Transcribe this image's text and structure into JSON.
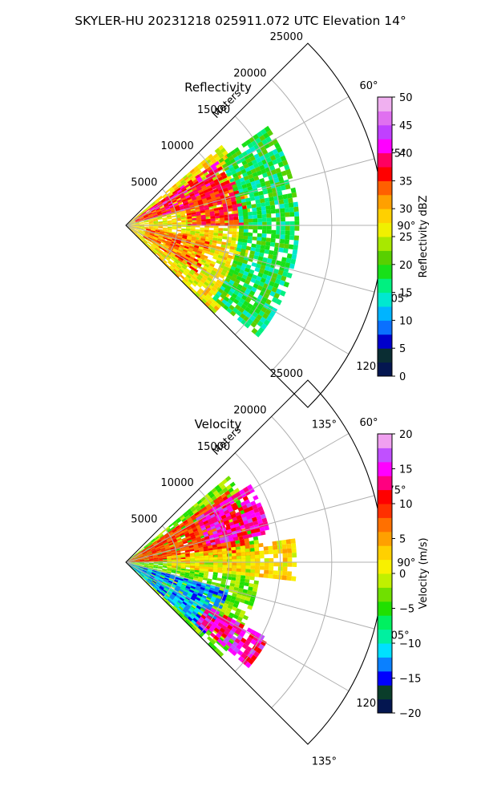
{
  "suptitle": "SKYLER-HU  20231218  025911.072 UTC Elevation 14°",
  "chart_data": [
    {
      "type": "heatmap",
      "title": "Reflectivity",
      "radial_label": "Meters",
      "r_ticks": [
        5000,
        10000,
        15000,
        20000,
        25000
      ],
      "r_tick_labels": [
        "5000",
        "10000",
        "15000",
        "20000",
        "25000"
      ],
      "theta_ticks": [
        60,
        75,
        90,
        105,
        120,
        135
      ],
      "theta_tick_labels": [
        "60°",
        "75°",
        "90°",
        "105°",
        "120°",
        "135°"
      ],
      "theta_range_deg": [
        45,
        135
      ],
      "r_range": [
        0,
        25000
      ],
      "grid": true,
      "colorbar": {
        "label": "Reflectivity dBZ",
        "range": [
          0,
          50
        ],
        "ticks": [
          0,
          5,
          10,
          15,
          20,
          25,
          30,
          35,
          40,
          45,
          50
        ],
        "tick_labels": [
          "0",
          "5",
          "10",
          "15",
          "20",
          "25",
          "30",
          "35",
          "40",
          "45",
          "50"
        ]
      },
      "echo_regions": [
        {
          "theta_from": 50,
          "theta_to": 134,
          "r_from": 0,
          "r_to": 12000,
          "value": 27
        },
        {
          "theta_from": 55,
          "theta_to": 75,
          "r_from": 1000,
          "r_to": 10500,
          "value": 37
        },
        {
          "theta_from": 68,
          "theta_to": 90,
          "r_from": 6000,
          "r_to": 11500,
          "value": 36
        },
        {
          "theta_from": 98,
          "theta_to": 122,
          "r_from": 2000,
          "r_to": 8000,
          "value": 33
        },
        {
          "theta_from": 55,
          "theta_to": 130,
          "r_from": 11000,
          "r_to": 16500,
          "value": 18
        }
      ]
    },
    {
      "type": "heatmap",
      "title": "Velocity",
      "radial_label": "Meters",
      "r_ticks": [
        5000,
        10000,
        15000,
        20000,
        25000
      ],
      "r_tick_labels": [
        "5000",
        "10000",
        "15000",
        "20000",
        "25000"
      ],
      "theta_ticks": [
        60,
        75,
        90,
        105,
        120,
        135
      ],
      "theta_tick_labels": [
        "60°",
        "75°",
        "90°",
        "105°",
        "120°",
        "135°"
      ],
      "theta_range_deg": [
        45,
        135
      ],
      "r_range": [
        0,
        25000
      ],
      "grid": true,
      "colorbar": {
        "label": "Velocity (m/s)",
        "range": [
          -20,
          20
        ],
        "ticks": [
          -20,
          -15,
          -10,
          -5,
          0,
          5,
          10,
          15,
          20
        ],
        "tick_labels": [
          "−20",
          "−15",
          "−10",
          "−5",
          "0",
          "5",
          "10",
          "15",
          "20"
        ]
      },
      "echo_regions": [
        {
          "theta_from": 50,
          "theta_to": 134,
          "r_from": 0,
          "r_to": 13000,
          "value": -3
        },
        {
          "theta_from": 55,
          "theta_to": 88,
          "r_from": 0,
          "r_to": 12000,
          "value": 9
        },
        {
          "theta_from": 58,
          "theta_to": 78,
          "r_from": 8000,
          "r_to": 14000,
          "value": 14
        },
        {
          "theta_from": 82,
          "theta_to": 95,
          "r_from": 4000,
          "r_to": 16500,
          "value": 2
        },
        {
          "theta_from": 105,
          "theta_to": 132,
          "r_from": 0,
          "r_to": 10000,
          "value": -12
        },
        {
          "theta_from": 118,
          "theta_to": 130,
          "r_from": 9000,
          "r_to": 15500,
          "value": 14
        }
      ]
    }
  ]
}
